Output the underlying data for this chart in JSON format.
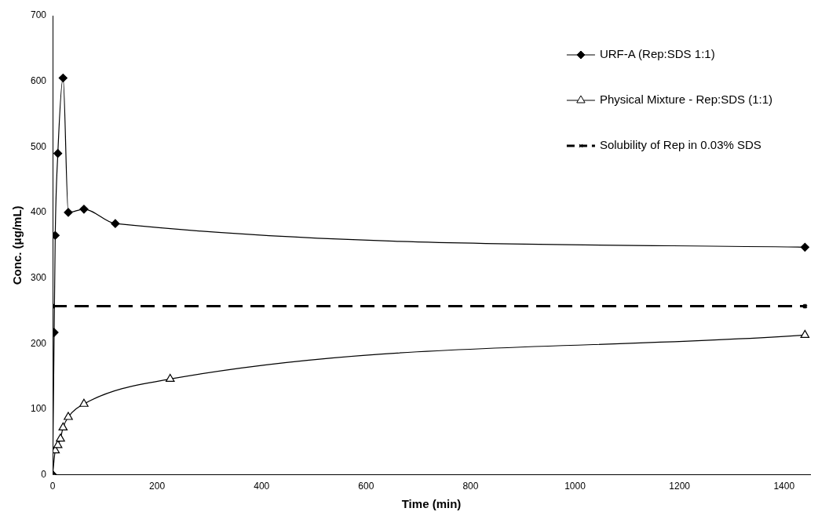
{
  "chart_data": {
    "type": "line",
    "xlabel": "Time (min)",
    "ylabel": "Conc. (μg/mL)",
    "xlim": [
      0,
      1450
    ],
    "xticks": [
      0,
      200,
      400,
      600,
      800,
      1000,
      1200,
      1400
    ],
    "ylim": [
      0,
      700
    ],
    "yticks": [
      0,
      100,
      200,
      300,
      400,
      500,
      600,
      700
    ],
    "grid": false,
    "legend": "top right",
    "series": [
      {
        "name": "URF-A (Rep:SDS 1:1)",
        "color": "#000000",
        "marker": "diamond",
        "line_style": "solid",
        "x": [
          0,
          3,
          5,
          10,
          20,
          30,
          60,
          120,
          1440
        ],
        "values": [
          0,
          217,
          365,
          490,
          605,
          400,
          405,
          383,
          347
        ]
      },
      {
        "name": "Physical Mixture - Rep:SDS (1:1)",
        "color": "#000000",
        "marker": "triangle",
        "line_style": "solid",
        "x": [
          0,
          5,
          10,
          15,
          20,
          30,
          60,
          225,
          1440
        ],
        "values": [
          0,
          37,
          45,
          55,
          72,
          88,
          108,
          146,
          213
        ]
      },
      {
        "name": "Solubility of Rep in 0.03% SDS",
        "color": "#000000",
        "marker": "cross",
        "line_style": "dashed",
        "x": [
          0,
          1440
        ],
        "values": [
          257,
          257
        ]
      }
    ]
  }
}
